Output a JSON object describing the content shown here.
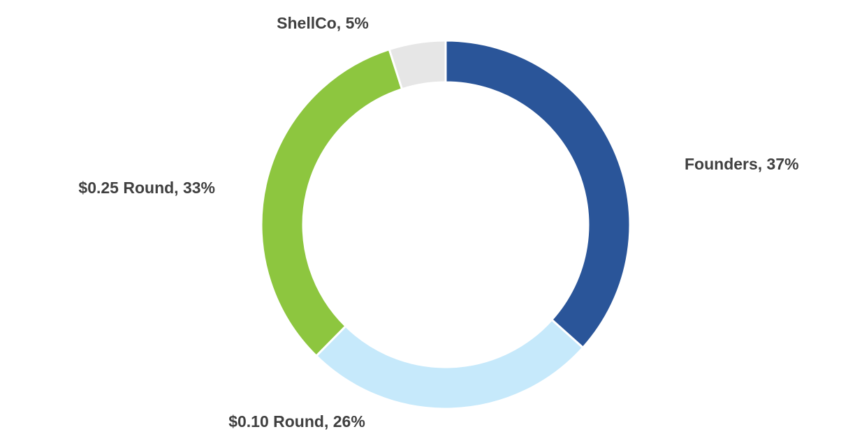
{
  "chart_data": {
    "type": "donut",
    "values": [
      37,
      26,
      33,
      5
    ],
    "value_labels": [
      "Founders, 37%",
      "$0.10 Round, 26%",
      "$0.25 Round, 33%",
      "ShellCo, 5%"
    ],
    "colors": [
      "#2a5599",
      "#c6e9fb",
      "#8dc63f",
      "#e6e6e6"
    ]
  }
}
